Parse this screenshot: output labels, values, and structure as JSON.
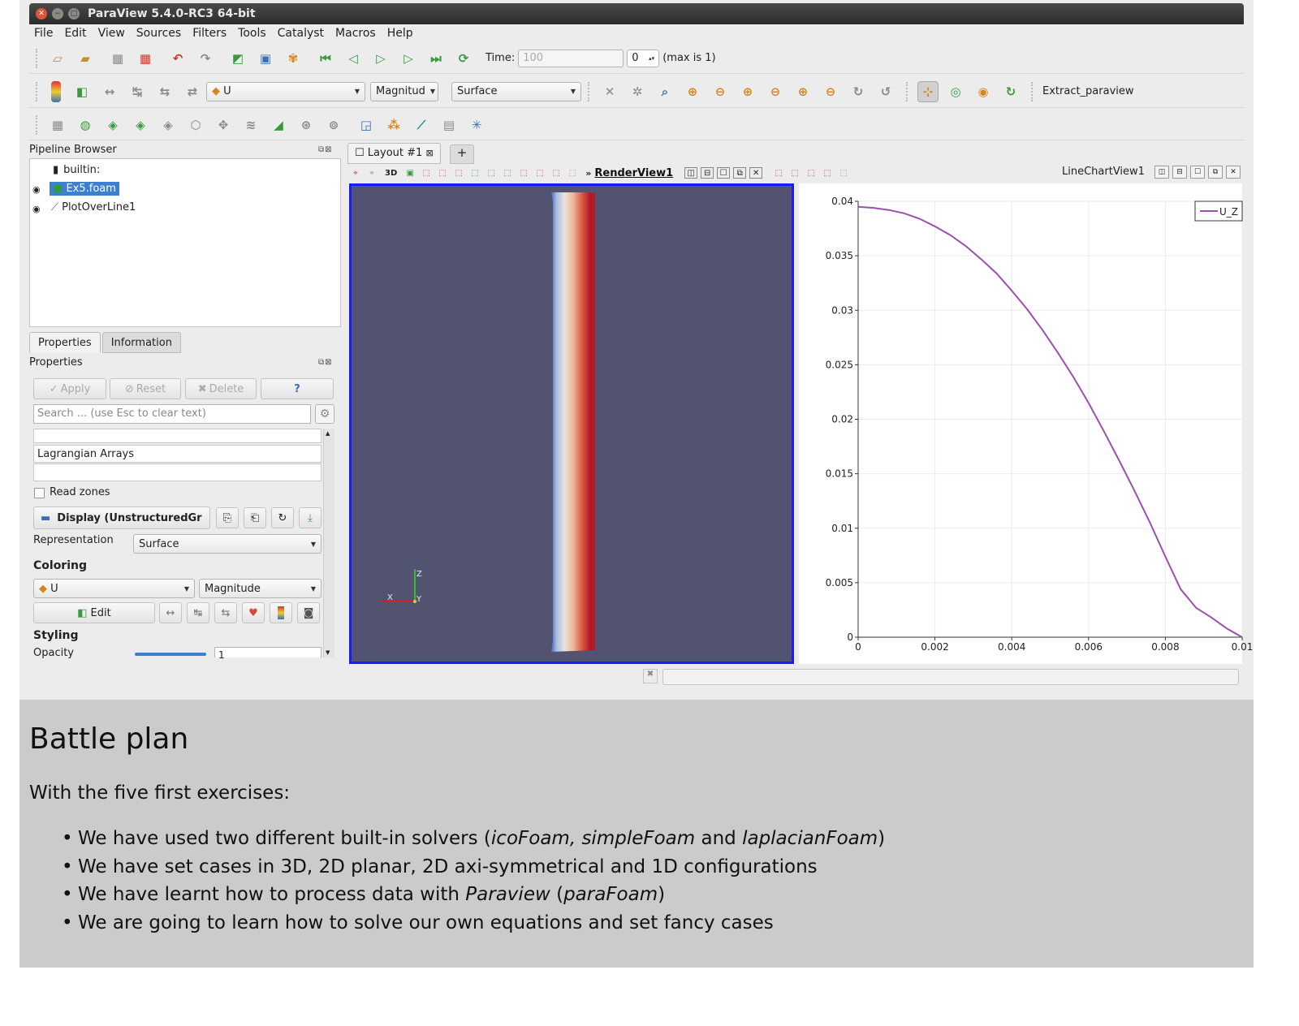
{
  "window": {
    "title": "ParaView 5.4.0-RC3 64-bit"
  },
  "menu": [
    "File",
    "Edit",
    "View",
    "Sources",
    "Filters",
    "Tools",
    "Catalyst",
    "Macros",
    "Help"
  ],
  "time": {
    "label": "Time:",
    "value": "100",
    "index": "0",
    "max_text": "(max is 1)"
  },
  "color_toolbar": {
    "array": "U",
    "component": "Magnitud",
    "representation": "Surface",
    "macro": "Extract_paraview"
  },
  "pipeline": {
    "title": "Pipeline Browser",
    "items": [
      "builtin:",
      "Ex5.foam",
      "PlotOverLine1"
    ]
  },
  "properties": {
    "tabs": [
      "Properties",
      "Information"
    ],
    "title": "Properties",
    "buttons": {
      "apply": "Apply",
      "reset": "Reset",
      "delete": "Delete",
      "help": "?"
    },
    "search_placeholder": "Search ... (use Esc to clear text)",
    "lagrangian": "Lagrangian Arrays",
    "read_zones": "Read zones",
    "display": "Display (UnstructuredGr",
    "representation_label": "Representation",
    "representation_value": "Surface",
    "coloring_title": "Coloring",
    "coloring_array": "U",
    "coloring_component": "Magnitude",
    "edit_label": "Edit",
    "styling_title": "Styling",
    "opacity_label": "Opacity",
    "opacity_value": "1",
    "opacity_fraction": 1.0
  },
  "layout": {
    "tab": "Layout #1",
    "plus": "+",
    "render_view": "RenderView1",
    "threed": "3D",
    "chart_view": "LineChartView1"
  },
  "axes_triad": {
    "z": "Z",
    "x": "X",
    "y": "Y"
  },
  "chart_data": {
    "type": "line",
    "xlim": [
      0,
      0.01
    ],
    "ylim": [
      0,
      0.04
    ],
    "xticks": [
      "0",
      "0.002",
      "0.004",
      "0.006",
      "0.008",
      "0.01"
    ],
    "yticks": [
      "0",
      "0.005",
      "0.01",
      "0.015",
      "0.02",
      "0.025",
      "0.03",
      "0.035",
      "0.04"
    ],
    "legend_position": "top-right",
    "grid": true,
    "series": [
      {
        "name": "U_Z",
        "color": "#9b4fb0",
        "x": [
          0,
          0.0004,
          0.0008,
          0.0012,
          0.0016,
          0.002,
          0.0024,
          0.0028,
          0.0032,
          0.0036,
          0.004,
          0.0044,
          0.0048,
          0.0052,
          0.0056,
          0.006,
          0.0064,
          0.0068,
          0.0072,
          0.0076,
          0.008,
          0.0084,
          0.0088,
          0.0092,
          0.0096,
          0.01
        ],
        "y": [
          0.0395,
          0.0394,
          0.0392,
          0.0389,
          0.0384,
          0.0377,
          0.0369,
          0.0359,
          0.0347,
          0.0334,
          0.0318,
          0.0301,
          0.0282,
          0.0261,
          0.0239,
          0.0215,
          0.0189,
          0.0162,
          0.0134,
          0.0105,
          0.0074,
          0.0044,
          0.0027,
          0.0018,
          0.0008,
          0
        ]
      }
    ]
  },
  "slide": {
    "title": "Battle plan",
    "intro": "With the five first exercises:",
    "bullets": [
      [
        {
          "t": "We have used two different built-in solvers ("
        },
        {
          "t": "icoFoam, simpleFoam",
          "i": true
        },
        {
          "t": " and "
        },
        {
          "t": "laplacianFoam",
          "i": true
        },
        {
          "t": ")"
        }
      ],
      [
        {
          "t": "We have set cases in 3D, 2D planar, 2D axi-symmetrical and 1D configurations"
        }
      ],
      [
        {
          "t": "We have learnt how to process data with "
        },
        {
          "t": "Paraview",
          "i": true
        },
        {
          "t": " ("
        },
        {
          "t": "paraFoam",
          "i": true
        },
        {
          "t": ")"
        }
      ],
      [
        {
          "t": "We are going to learn how to solve our own equations and set fancy cases"
        }
      ]
    ]
  }
}
